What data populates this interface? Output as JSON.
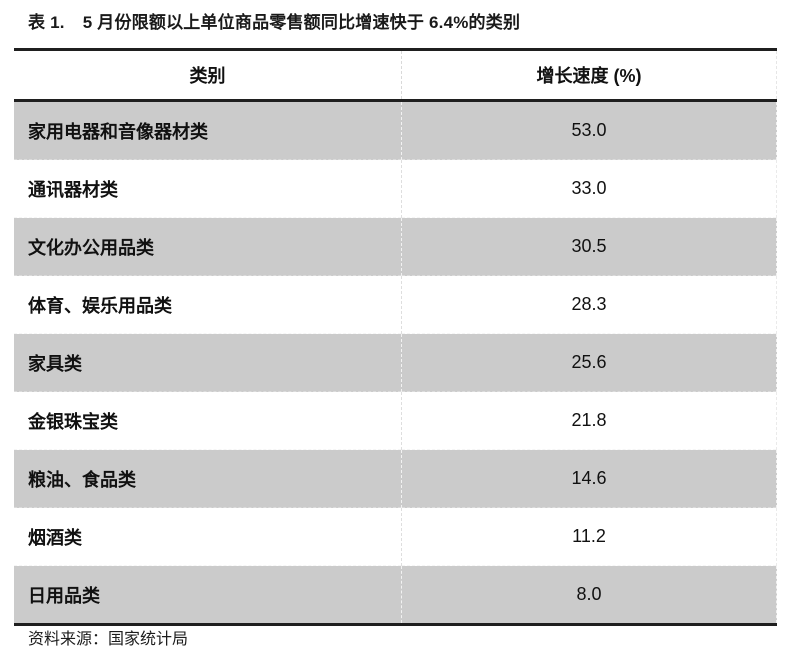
{
  "title": {
    "label": "表 1.",
    "text": "5 月份限额以上单位商品零售额同比增速快于 6.4%的类别"
  },
  "table": {
    "columns": [
      "类别",
      "增长速度 (%)"
    ],
    "rows": [
      {
        "category": "家用电器和音像器材类",
        "value": "53.0"
      },
      {
        "category": "通讯器材类",
        "value": "33.0"
      },
      {
        "category": "文化办公用品类",
        "value": "30.5"
      },
      {
        "category": "体育、娱乐用品类",
        "value": "28.3"
      },
      {
        "category": "家具类",
        "value": "25.6"
      },
      {
        "category": "金银珠宝类",
        "value": "21.8"
      },
      {
        "category": "粮油、食品类",
        "value": "14.6"
      },
      {
        "category": "烟酒类",
        "value": "11.2"
      },
      {
        "category": "日用品类",
        "value": "8.0"
      }
    ]
  },
  "source": "资料来源：国家统计局",
  "colors": {
    "row_alt": "#cbcbcb",
    "rule_dark": "#1f1f1f",
    "text": "#111111"
  }
}
